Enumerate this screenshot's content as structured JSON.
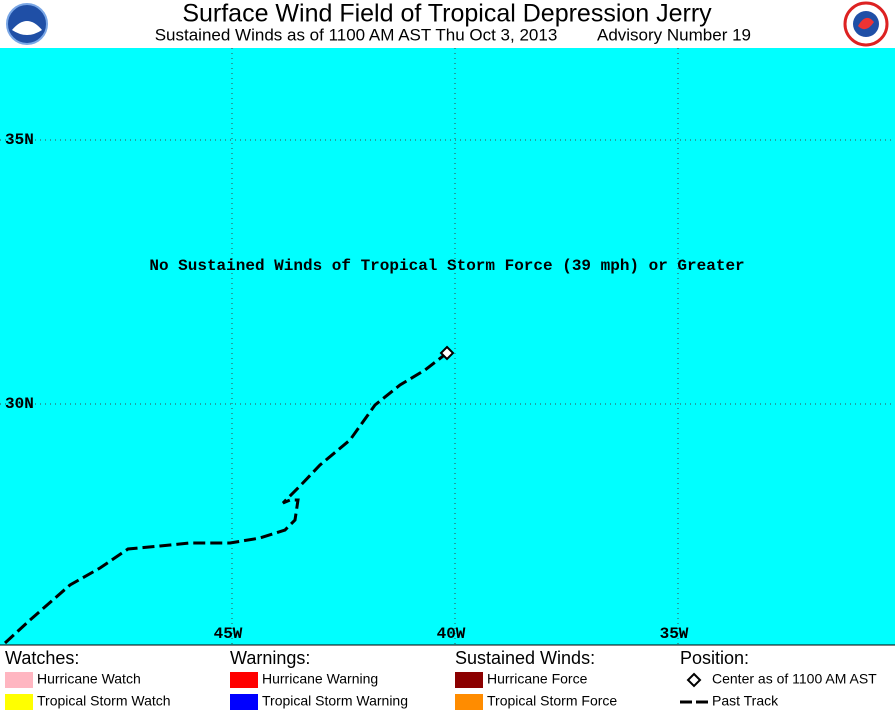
{
  "header": {
    "title": "Surface Wind Field of Tropical Depression Jerry",
    "subtitle": "Sustained Winds as of 1100 AM AST Thu Oct 3, 2013",
    "advisory": "Advisory Number 19"
  },
  "map": {
    "message": "No Sustained Winds of Tropical Storm Force (39 mph) or Greater",
    "lat_labels": [
      "35N",
      "30N"
    ],
    "lon_labels": [
      "45W",
      "40W",
      "35W"
    ]
  },
  "legend": {
    "columns": [
      {
        "heading": "Watches:",
        "items": [
          "Hurricane Watch",
          "Tropical Storm Watch"
        ]
      },
      {
        "heading": "Warnings:",
        "items": [
          "Hurricane Warning",
          "Tropical Storm Warning"
        ]
      },
      {
        "heading": "Sustained Winds:",
        "items": [
          "Hurricane Force",
          "Tropical Storm Force"
        ]
      },
      {
        "heading": "Position:",
        "items": [
          "Center as of 1100 AM AST",
          "Past Track"
        ]
      }
    ]
  }
}
